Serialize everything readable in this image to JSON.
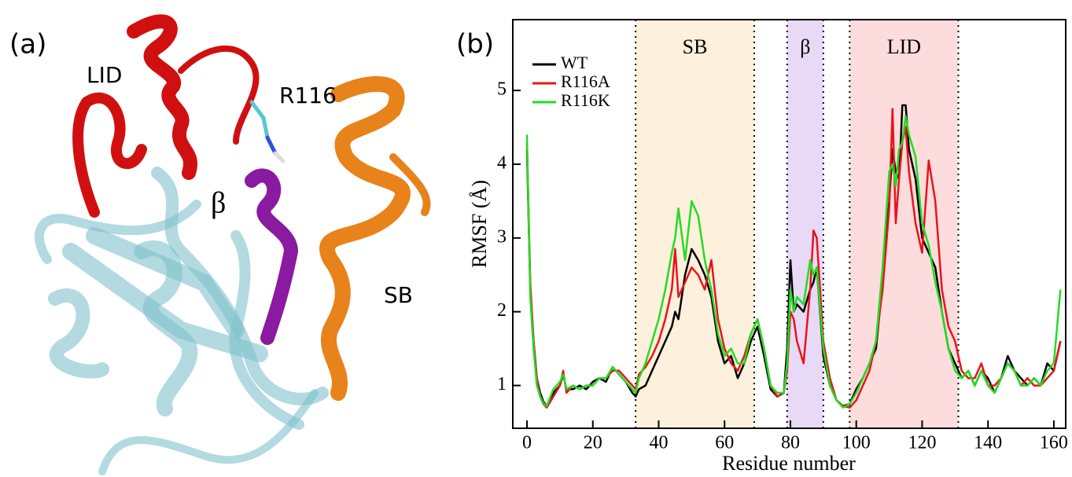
{
  "panel_a": {
    "label": "(a)",
    "labels": [
      "LID",
      "R116",
      "β",
      "SB"
    ]
  },
  "chart_data": {
    "type": "line",
    "panel_label": "(b)",
    "x_label": "Residue number",
    "y_label": "RMSF (Å)",
    "xlim": [
      -4.3,
      163.6
    ],
    "ylim": [
      0.42,
      5.96
    ],
    "xticks": [
      0,
      20,
      40,
      60,
      80,
      100,
      120,
      140,
      160
    ],
    "yticks": [
      1,
      2,
      3,
      4,
      5
    ],
    "legend": "upper left",
    "regions": [
      {
        "name": "SB",
        "start": 33,
        "end": 69,
        "color": "#fdf0dc"
      },
      {
        "name": "β",
        "start": 79,
        "end": 90,
        "color": "#e8d9f6"
      },
      {
        "name": "LID",
        "start": 98,
        "end": 131,
        "color": "#fcdcdc"
      }
    ],
    "x": [
      0,
      1,
      2,
      3,
      4,
      5,
      6,
      8,
      10,
      11,
      12,
      14,
      16,
      18,
      20,
      22,
      24,
      26,
      28,
      30,
      32,
      33,
      34,
      36,
      38,
      40,
      42,
      44,
      45,
      46,
      48,
      50,
      52,
      54,
      56,
      58,
      60,
      62,
      64,
      66,
      68,
      70,
      72,
      74,
      76,
      78,
      79,
      80,
      81,
      82,
      84,
      86,
      87,
      88,
      90,
      92,
      94,
      96,
      98,
      100,
      102,
      104,
      106,
      108,
      110,
      111,
      112,
      113,
      114,
      115,
      116,
      118,
      120,
      122,
      124,
      126,
      128,
      130,
      132,
      134,
      136,
      138,
      140,
      142,
      144,
      146,
      148,
      150,
      152,
      154,
      156,
      158,
      160,
      162
    ],
    "series": [
      {
        "name": "WT",
        "color": "#000000",
        "values": [
          4.2,
          2.3,
          1.6,
          1.1,
          0.9,
          0.78,
          0.72,
          0.9,
          1.0,
          1.15,
          0.95,
          0.95,
          1.0,
          0.95,
          1.05,
          1.1,
          1.05,
          1.25,
          1.15,
          1.05,
          0.9,
          0.85,
          0.95,
          1.0,
          1.2,
          1.4,
          1.6,
          1.8,
          2.0,
          1.9,
          2.5,
          2.85,
          2.7,
          2.5,
          2.2,
          1.6,
          1.3,
          1.4,
          1.1,
          1.3,
          1.6,
          1.8,
          1.4,
          0.95,
          0.85,
          0.9,
          1.5,
          2.7,
          2.0,
          2.1,
          2.0,
          2.3,
          2.4,
          2.6,
          1.4,
          1.0,
          0.8,
          0.72,
          0.75,
          0.95,
          1.1,
          1.3,
          1.5,
          2.4,
          3.5,
          4.2,
          3.9,
          3.8,
          4.8,
          4.8,
          4.2,
          3.8,
          3.0,
          2.8,
          2.6,
          2.0,
          1.5,
          1.3,
          1.1,
          1.2,
          1.0,
          1.2,
          1.1,
          0.9,
          1.1,
          1.4,
          1.2,
          1.1,
          1.0,
          1.1,
          1.0,
          1.3,
          1.2,
          1.6
        ]
      },
      {
        "name": "R116A",
        "color": "#e8141b",
        "values": [
          4.3,
          2.4,
          1.6,
          1.1,
          0.85,
          0.75,
          0.7,
          0.85,
          1.0,
          1.2,
          0.9,
          1.0,
          0.95,
          1.0,
          1.0,
          1.1,
          1.1,
          1.2,
          1.2,
          1.1,
          1.0,
          0.95,
          1.15,
          1.25,
          1.4,
          1.6,
          1.9,
          2.3,
          2.85,
          2.2,
          2.4,
          2.6,
          2.5,
          2.3,
          2.7,
          1.9,
          1.5,
          1.3,
          1.2,
          1.4,
          1.7,
          1.9,
          1.5,
          1.0,
          0.85,
          0.9,
          1.2,
          2.0,
          1.9,
          1.6,
          1.3,
          2.3,
          3.1,
          3.0,
          1.6,
          1.1,
          0.8,
          0.72,
          0.7,
          0.8,
          1.0,
          1.2,
          1.6,
          2.3,
          3.4,
          4.75,
          3.2,
          3.8,
          4.3,
          4.5,
          3.9,
          3.2,
          2.8,
          4.05,
          3.5,
          2.3,
          1.8,
          1.6,
          1.2,
          1.1,
          1.1,
          1.3,
          1.0,
          1.0,
          1.1,
          1.3,
          1.2,
          1.0,
          1.1,
          1.0,
          1.0,
          1.1,
          1.2,
          1.6
        ]
      },
      {
        "name": "R116K",
        "color": "#22dd22",
        "values": [
          4.4,
          2.2,
          1.5,
          1.0,
          0.85,
          0.76,
          0.72,
          0.95,
          1.05,
          1.15,
          0.95,
          1.0,
          0.95,
          1.0,
          1.0,
          1.1,
          1.1,
          1.25,
          1.15,
          1.05,
          0.95,
          0.9,
          1.1,
          1.3,
          1.6,
          1.9,
          2.3,
          2.8,
          3.0,
          3.4,
          2.7,
          3.5,
          3.3,
          2.7,
          2.3,
          1.7,
          1.4,
          1.5,
          1.3,
          1.3,
          1.7,
          1.9,
          1.5,
          1.0,
          0.9,
          0.9,
          1.3,
          2.3,
          2.0,
          2.2,
          2.1,
          2.7,
          2.5,
          2.6,
          1.5,
          1.0,
          0.8,
          0.7,
          0.75,
          0.9,
          1.1,
          1.3,
          1.6,
          2.6,
          3.9,
          4.0,
          3.7,
          4.2,
          4.3,
          4.65,
          4.4,
          4.1,
          3.2,
          2.9,
          2.4,
          2.0,
          1.5,
          1.2,
          1.1,
          1.2,
          1.0,
          1.2,
          1.0,
          0.9,
          1.1,
          1.3,
          1.2,
          1.0,
          1.0,
          1.1,
          1.0,
          1.2,
          1.3,
          2.3
        ]
      }
    ]
  }
}
